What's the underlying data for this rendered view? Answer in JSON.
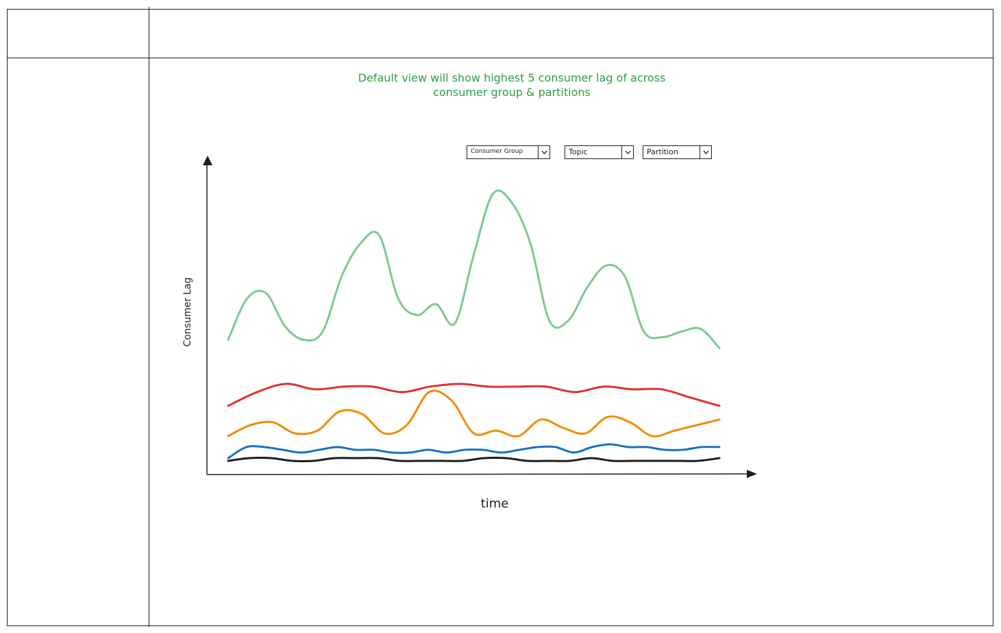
{
  "wireframe": {
    "note": "Default view will show highest 5 consumer lag of across consumer group & partitions"
  },
  "filters": {
    "consumer_group": "Consumer Group",
    "topic": "Topic",
    "partition": "Partition"
  },
  "icons": {
    "dropdown": "chevron-down-icon"
  },
  "chart_data": {
    "type": "line",
    "title": "",
    "xlabel": "time",
    "ylabel": "Consumer Lag",
    "grid": false,
    "legend": "none",
    "series": [
      {
        "color": "#7dc891",
        "values": [
          47,
          62,
          64,
          52,
          47,
          50,
          70,
          82,
          85,
          62,
          56,
          60,
          53,
          78,
          100,
          97,
          82,
          54,
          54,
          66,
          74,
          70,
          50,
          48,
          50,
          51,
          44
        ]
      },
      {
        "color": "#e03131",
        "values": [
          23,
          28,
          31,
          29,
          30,
          30,
          28,
          30,
          31,
          30,
          30,
          30,
          28,
          30,
          29,
          29,
          26,
          23
        ]
      },
      {
        "color": "#f08c00",
        "values": [
          12,
          16,
          17,
          13,
          14,
          21,
          20,
          13,
          16,
          28,
          25,
          13,
          14,
          12,
          18,
          15,
          13,
          19,
          17,
          12,
          14,
          16,
          18
        ]
      },
      {
        "color": "#1971c2",
        "values": [
          4,
          8,
          8,
          7,
          6,
          7,
          8,
          7,
          7,
          6,
          6,
          7,
          6,
          7,
          7,
          6,
          7,
          8,
          8,
          6,
          8,
          9,
          8,
          8,
          7,
          7,
          8,
          8
        ]
      },
      {
        "color": "#1e1e1e",
        "values": [
          3,
          4,
          4,
          3,
          3,
          4,
          4,
          4,
          3,
          3,
          3,
          3,
          4,
          4,
          3,
          3,
          3,
          4,
          3,
          3,
          3,
          3,
          3,
          4
        ]
      }
    ]
  }
}
